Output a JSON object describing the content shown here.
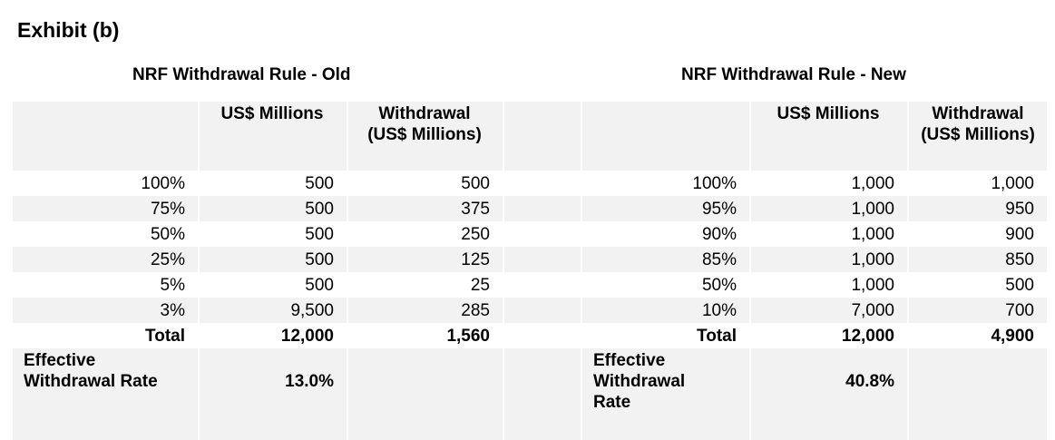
{
  "title": "Exhibit (b)",
  "old": {
    "title": "NRF Withdrawal Rule - Old",
    "headers": [
      "",
      "US$ Millions",
      "Withdrawal (US$ Millions)"
    ],
    "rows": [
      [
        "100%",
        "500",
        "500"
      ],
      [
        "75%",
        "500",
        "375"
      ],
      [
        "50%",
        "500",
        "250"
      ],
      [
        "25%",
        "500",
        "125"
      ],
      [
        "5%",
        "500",
        "25"
      ],
      [
        "3%",
        "9,500",
        "285"
      ]
    ],
    "total": [
      "Total",
      "12,000",
      "1,560"
    ],
    "effective": [
      "Effective Withdrawal Rate",
      "13.0%",
      ""
    ]
  },
  "new": {
    "title": "NRF Withdrawal Rule - New",
    "headers": [
      "",
      "US$ Millions",
      "Withdrawal (US$ Millions)"
    ],
    "rows": [
      [
        "100%",
        "1,000",
        "1,000"
      ],
      [
        "95%",
        "1,000",
        "950"
      ],
      [
        "90%",
        "1,000",
        "900"
      ],
      [
        "85%",
        "1,000",
        "850"
      ],
      [
        "50%",
        "1,000",
        "500"
      ],
      [
        "10%",
        "7,000",
        "700"
      ]
    ],
    "total": [
      "Total",
      "12,000",
      "4,900"
    ],
    "effective": [
      "Effective Withdrawal Rate",
      "40.8%",
      ""
    ]
  }
}
